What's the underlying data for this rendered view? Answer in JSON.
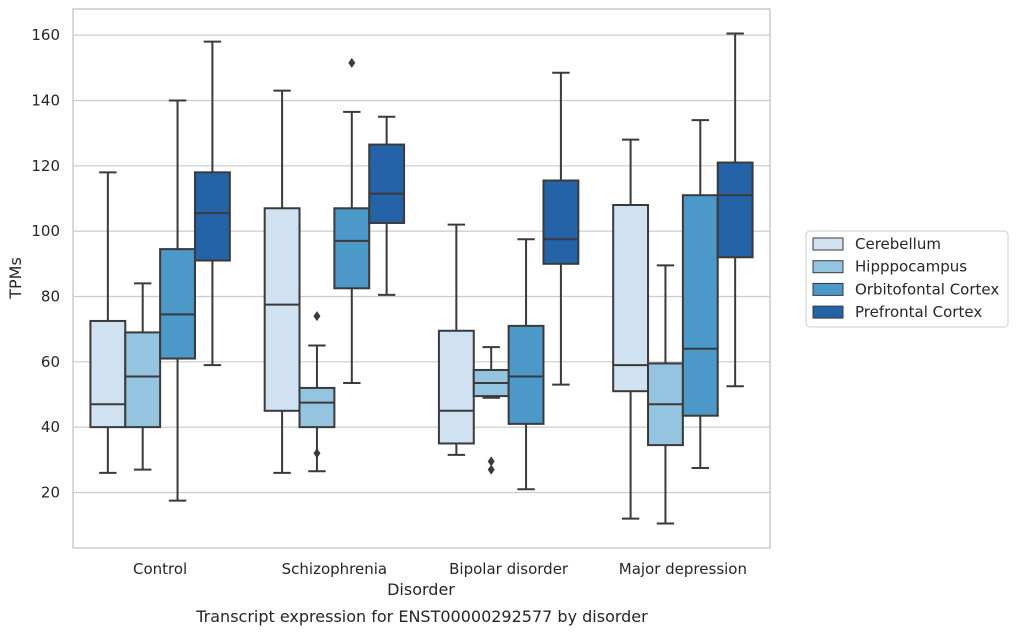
{
  "chart_data": {
    "type": "box",
    "title": "",
    "caption": "Transcript expression for ENST00000292577 by disorder",
    "xlabel": "Disorder",
    "ylabel": "TPMs",
    "ylim": [
      3,
      168
    ],
    "yticks": [
      20,
      40,
      60,
      80,
      100,
      120,
      140,
      160
    ],
    "grid": true,
    "legend_position": "right",
    "categories": [
      "Control",
      "Schizophrenia",
      "Bipolar disorder",
      "Major depression"
    ],
    "series": [
      {
        "name": "Cerebellum",
        "color": "#d0e1f2",
        "boxes": [
          {
            "whisker_low": 26,
            "q1": 40,
            "median": 47,
            "q3": 72.5,
            "whisker_high": 118,
            "outliers": []
          },
          {
            "whisker_low": 26,
            "q1": 45,
            "median": 77.5,
            "q3": 107,
            "whisker_high": 143,
            "outliers": []
          },
          {
            "whisker_low": 31.5,
            "q1": 35,
            "median": 45,
            "q3": 69.5,
            "whisker_high": 102,
            "outliers": []
          },
          {
            "whisker_low": 12,
            "q1": 51,
            "median": 59,
            "q3": 108,
            "whisker_high": 128,
            "outliers": []
          }
        ]
      },
      {
        "name": "Hipppocampus",
        "color": "#94c4df",
        "boxes": [
          {
            "whisker_low": 27,
            "q1": 40,
            "median": 55.5,
            "q3": 69,
            "whisker_high": 84,
            "outliers": []
          },
          {
            "whisker_low": 26.5,
            "q1": 40,
            "median": 47.5,
            "q3": 52,
            "whisker_high": 65,
            "outliers": [
              74,
              32
            ]
          },
          {
            "whisker_low": 49,
            "q1": 49.5,
            "median": 53.5,
            "q3": 57.5,
            "whisker_high": 64.5,
            "outliers": [
              29.5,
              27
            ]
          },
          {
            "whisker_low": 10.5,
            "q1": 34.5,
            "median": 47,
            "q3": 59.5,
            "whisker_high": 89.5,
            "outliers": []
          }
        ]
      },
      {
        "name": "Orbitofontal Cortex",
        "color": "#4b98c9",
        "boxes": [
          {
            "whisker_low": 17.5,
            "q1": 61,
            "median": 74.5,
            "q3": 94.5,
            "whisker_high": 140,
            "outliers": []
          },
          {
            "whisker_low": 53.5,
            "q1": 82.5,
            "median": 97,
            "q3": 107,
            "whisker_high": 136.5,
            "outliers": [
              151.5
            ]
          },
          {
            "whisker_low": 21,
            "q1": 41,
            "median": 55.5,
            "q3": 71,
            "whisker_high": 97.5,
            "outliers": []
          },
          {
            "whisker_low": 27.5,
            "q1": 43.5,
            "median": 64,
            "q3": 111,
            "whisker_high": 134,
            "outliers": []
          }
        ]
      },
      {
        "name": "Prefrontal Cortex",
        "color": "#2563a8",
        "boxes": [
          {
            "whisker_low": 59,
            "q1": 91,
            "median": 105.5,
            "q3": 118,
            "whisker_high": 158,
            "outliers": []
          },
          {
            "whisker_low": 80.5,
            "q1": 102.5,
            "median": 111.5,
            "q3": 126.5,
            "whisker_high": 135,
            "outliers": []
          },
          {
            "whisker_low": 53,
            "q1": 90,
            "median": 97.5,
            "q3": 115.5,
            "whisker_high": 148.5,
            "outliers": []
          },
          {
            "whisker_low": 52.5,
            "q1": 92,
            "median": 111,
            "q3": 121,
            "whisker_high": 160.5,
            "outliers": []
          }
        ]
      }
    ]
  }
}
